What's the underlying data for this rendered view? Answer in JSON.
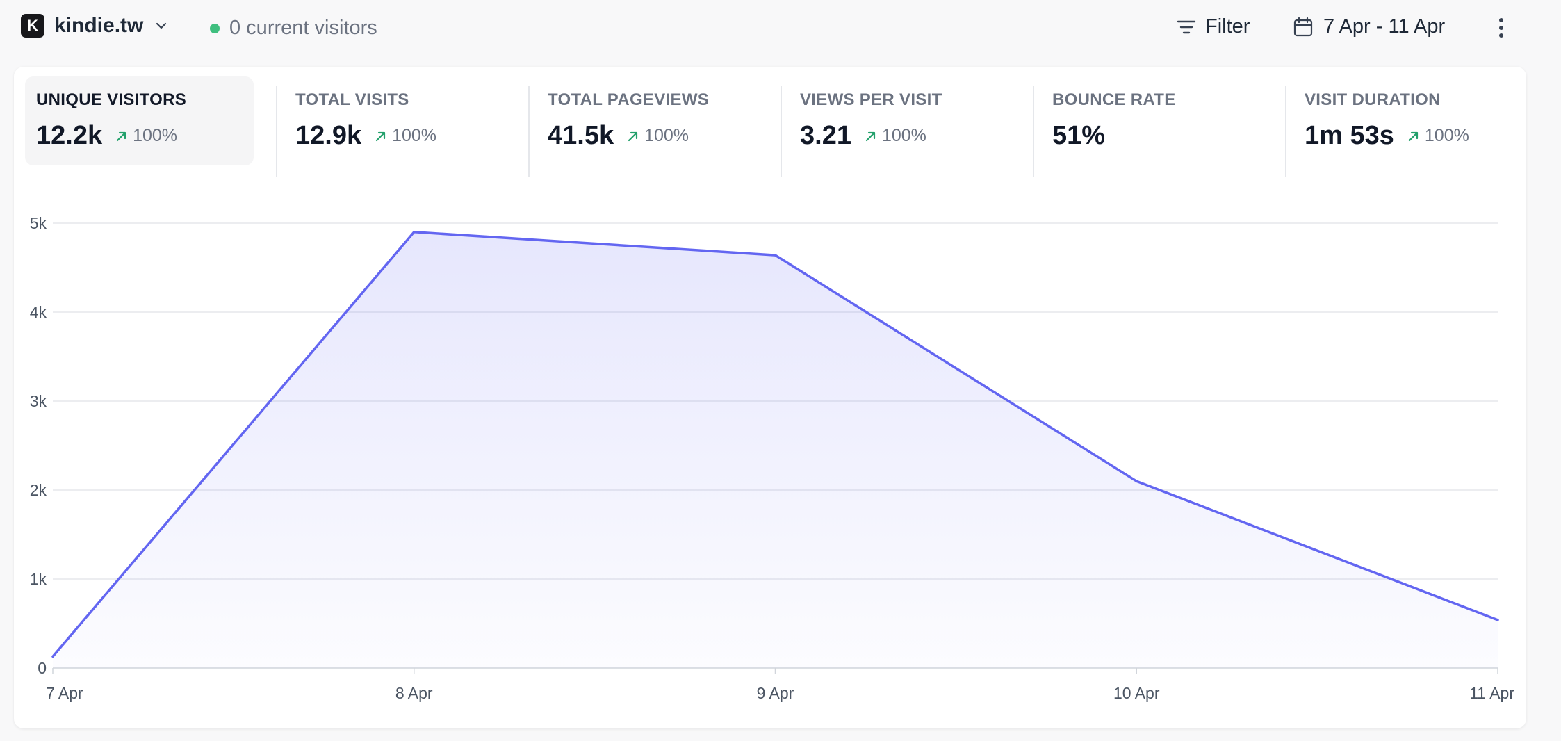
{
  "header": {
    "site_initial": "K",
    "site_name": "kindie.tw",
    "current_visitors": "0 current visitors",
    "filter_label": "Filter",
    "date_range": "7 Apr - 11 Apr"
  },
  "colors": {
    "accent": "#6366f1",
    "live": "#3fbf7f",
    "trend_up": "#22a06b"
  },
  "metrics": [
    {
      "label": "UNIQUE VISITORS",
      "value": "12.2k",
      "change": "100%",
      "selected": true
    },
    {
      "label": "TOTAL VISITS",
      "value": "12.9k",
      "change": "100%"
    },
    {
      "label": "TOTAL PAGEVIEWS",
      "value": "41.5k",
      "change": "100%"
    },
    {
      "label": "VIEWS PER VISIT",
      "value": "3.21",
      "change": "100%"
    },
    {
      "label": "BOUNCE RATE",
      "value": "51%",
      "change": ""
    },
    {
      "label": "VISIT DURATION",
      "value": "1m 53s",
      "change": "100%"
    }
  ],
  "chart_data": {
    "type": "area",
    "categories": [
      "7 Apr",
      "8 Apr",
      "9 Apr",
      "10 Apr",
      "11 Apr"
    ],
    "values": [
      130,
      4900,
      4640,
      2100,
      540
    ],
    "ylim": [
      0,
      5000
    ],
    "yticks": [
      0,
      1000,
      2000,
      3000,
      4000,
      5000
    ],
    "ytick_labels": [
      "0",
      "1k",
      "2k",
      "3k",
      "4k",
      "5k"
    ],
    "grid": true,
    "color": "#6366f1"
  }
}
